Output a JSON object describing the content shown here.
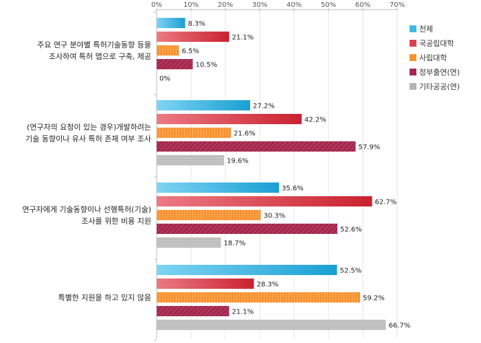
{
  "chart_data": {
    "type": "bar",
    "orientation": "horizontal",
    "title": "",
    "xlabel": "",
    "ylabel": "",
    "xlim": [
      0,
      70
    ],
    "ticks": [
      "0%",
      "10%",
      "20%",
      "30%",
      "40%",
      "50%",
      "60%",
      "70%"
    ],
    "tick_values": [
      0,
      10,
      20,
      30,
      40,
      50,
      60,
      70
    ],
    "grid": true,
    "legend_position": "right",
    "categories": [
      [
        "주요 연구 분야별 특허기술동향 등을",
        "조사하여 특허 맵으로 구축, 제공"
      ],
      [
        "(연구자의 요청이 있는 경우)개발하려는",
        "기술 동향이나 유사 특허 존재 여부 조사"
      ],
      [
        "연구자에게 기술동향이나 선행특허(기술)",
        "조사를 위한 비용 지원"
      ],
      [
        "특별한 지원을 하고 있지 않음"
      ]
    ],
    "series": [
      {
        "name": "전체",
        "color": "#3db8e6",
        "values": [
          8.3,
          27.2,
          35.6,
          52.5
        ],
        "labels": [
          "8.3%",
          "27.2%",
          "35.6%",
          "52.5%"
        ]
      },
      {
        "name": "국공립대학",
        "color": "#d9404f",
        "values": [
          21.1,
          42.2,
          62.7,
          28.3
        ],
        "labels": [
          "21.1%",
          "42.2%",
          "62.7%",
          "28.3%"
        ]
      },
      {
        "name": "사립대학",
        "color": "#f7922e",
        "values": [
          6.5,
          21.6,
          30.3,
          59.2
        ],
        "labels": [
          "6.5%",
          "21.6%",
          "30.3%",
          "59.2%"
        ]
      },
      {
        "name": "정부출연(연)",
        "color": "#a3284e",
        "values": [
          10.5,
          57.9,
          52.6,
          21.1
        ],
        "labels": [
          "10.5%",
          "57.9%",
          "52.6%",
          "21.1%"
        ]
      },
      {
        "name": "기타공공(연)",
        "color": "#b5b5b5",
        "values": [
          0,
          19.6,
          18.7,
          66.7
        ],
        "labels": [
          "0%",
          "19.6%",
          "18.7%",
          "66.7%"
        ]
      }
    ]
  }
}
